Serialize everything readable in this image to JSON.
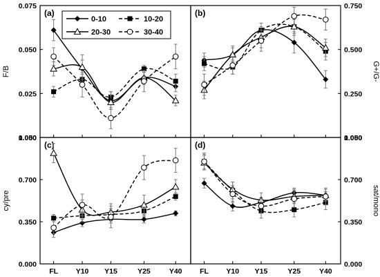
{
  "chart_data": [
    {
      "type": "line",
      "panel": "(a)",
      "ylabel": "F/B",
      "y_axis_side": "left",
      "categories": [
        "FL",
        "Y10",
        "Y15",
        "Y25",
        "Y40"
      ],
      "yticks": [
        "0.000",
        "0.025",
        "0.050",
        "0.075"
      ],
      "ylim": [
        0,
        0.075
      ],
      "series": [
        {
          "name": "0-10",
          "values": [
            0.061,
            0.039,
            0.021,
            0.034,
            0.029
          ],
          "err": [
            0.006,
            0.005,
            0.005,
            0.003,
            0.003
          ]
        },
        {
          "name": "10-20",
          "values": [
            0.026,
            0.033,
            0.023,
            0.039,
            0.032
          ],
          "err": [
            0.003,
            0.003,
            0.003,
            0.002,
            0.004
          ]
        },
        {
          "name": "20-30",
          "values": [
            0.039,
            0.04,
            0.02,
            0.034,
            0.021
          ],
          "err": [
            0.004,
            0.007,
            0.004,
            0.004,
            0.003
          ]
        },
        {
          "name": "30-40",
          "values": [
            0.046,
            0.03,
            0.011,
            0.032,
            0.046
          ],
          "err": [
            0.005,
            0.007,
            0.006,
            0.006,
            0.007
          ]
        }
      ]
    },
    {
      "type": "line",
      "panel": "(b)",
      "ylabel": "G+/G-",
      "y_axis_side": "right",
      "categories": [
        "FL",
        "Y10",
        "Y15",
        "Y25",
        "Y40"
      ],
      "yticks": [
        "0.000",
        "0.250",
        "0.500",
        "0.750"
      ],
      "ylim": [
        0,
        0.75
      ],
      "series": [
        {
          "name": "0-10",
          "values": [
            0.44,
            0.47,
            0.61,
            0.54,
            0.33
          ],
          "err": [
            0.04,
            0.04,
            0.04,
            0.06,
            0.05
          ]
        },
        {
          "name": "10-20",
          "values": [
            0.42,
            0.4,
            0.61,
            0.63,
            0.49
          ],
          "err": [
            0.04,
            0.04,
            0.04,
            0.04,
            0.05
          ]
        },
        {
          "name": "20-30",
          "values": [
            0.27,
            0.47,
            0.57,
            0.63,
            0.51
          ],
          "err": [
            0.05,
            0.05,
            0.06,
            0.05,
            0.05
          ]
        },
        {
          "name": "30-40",
          "values": [
            0.3,
            0.41,
            0.55,
            0.69,
            0.67
          ],
          "err": [
            0.06,
            0.05,
            0.06,
            0.05,
            0.06
          ]
        }
      ]
    },
    {
      "type": "line",
      "panel": "(c)",
      "ylabel": "cy/pre",
      "y_axis_side": "left",
      "categories": [
        "FL",
        "Y10",
        "Y15",
        "Y25",
        "Y40"
      ],
      "xticks": [
        "FL",
        "Y10",
        "Y15",
        "Y25",
        "Y40"
      ],
      "yticks": [
        "0.000",
        "0.350",
        "0.700",
        "1.050"
      ],
      "ylim": [
        0,
        1.05
      ],
      "series": [
        {
          "name": "0-10",
          "values": [
            0.26,
            0.34,
            0.37,
            0.37,
            0.42
          ],
          "err": [
            0.04,
            0.03,
            0.03,
            0.03,
            0.02
          ]
        },
        {
          "name": "10-20",
          "values": [
            0.38,
            0.4,
            0.41,
            0.44,
            0.56
          ],
          "err": [
            0.03,
            0.05,
            0.05,
            0.05,
            0.03
          ]
        },
        {
          "name": "20-30",
          "values": [
            0.92,
            0.45,
            0.43,
            0.49,
            0.64
          ],
          "err": [
            0.08,
            0.08,
            0.07,
            0.08,
            0.06
          ]
        },
        {
          "name": "30-40",
          "values": [
            0.3,
            0.49,
            0.39,
            0.8,
            0.86
          ],
          "err": [
            0.05,
            0.09,
            0.09,
            0.1,
            0.1
          ]
        }
      ]
    },
    {
      "type": "line",
      "panel": "(d)",
      "ylabel": "sat/mono",
      "y_axis_side": "right",
      "categories": [
        "FL",
        "Y10",
        "Y15",
        "Y25",
        "Y40"
      ],
      "xticks": [
        "FL",
        "Y10",
        "Y15",
        "Y25",
        "Y40"
      ],
      "yticks": [
        "0.000",
        "0.350",
        "0.700",
        "1.050"
      ],
      "ylim": [
        0,
        1.05
      ],
      "series": [
        {
          "name": "0-10",
          "values": [
            0.67,
            0.48,
            0.51,
            0.59,
            0.57
          ],
          "err": [
            0.04,
            0.04,
            0.04,
            0.04,
            0.03
          ]
        },
        {
          "name": "10-20",
          "values": [
            0.85,
            0.61,
            0.44,
            0.45,
            0.51
          ],
          "err": [
            0.06,
            0.07,
            0.06,
            0.06,
            0.06
          ]
        },
        {
          "name": "20-30",
          "values": [
            0.84,
            0.62,
            0.53,
            0.56,
            0.57
          ],
          "err": [
            0.06,
            0.06,
            0.06,
            0.06,
            0.05
          ]
        },
        {
          "name": "30-40",
          "values": [
            0.85,
            0.58,
            0.48,
            0.54,
            0.56
          ],
          "err": [
            0.07,
            0.07,
            0.06,
            0.07,
            0.07
          ]
        }
      ]
    }
  ],
  "legend": {
    "placement": "top-center of panel (a)",
    "entries": [
      {
        "label": "0-10",
        "marker": "diamond",
        "line": "solid"
      },
      {
        "label": "10-20",
        "marker": "square",
        "line": "dashed"
      },
      {
        "label": "20-30",
        "marker": "triangle",
        "line": "solid"
      },
      {
        "label": "30-40",
        "marker": "circle",
        "line": "dashed"
      }
    ]
  },
  "colors": {
    "lines": "#000000",
    "background": "#ffffff",
    "error_bars": "#888888"
  }
}
